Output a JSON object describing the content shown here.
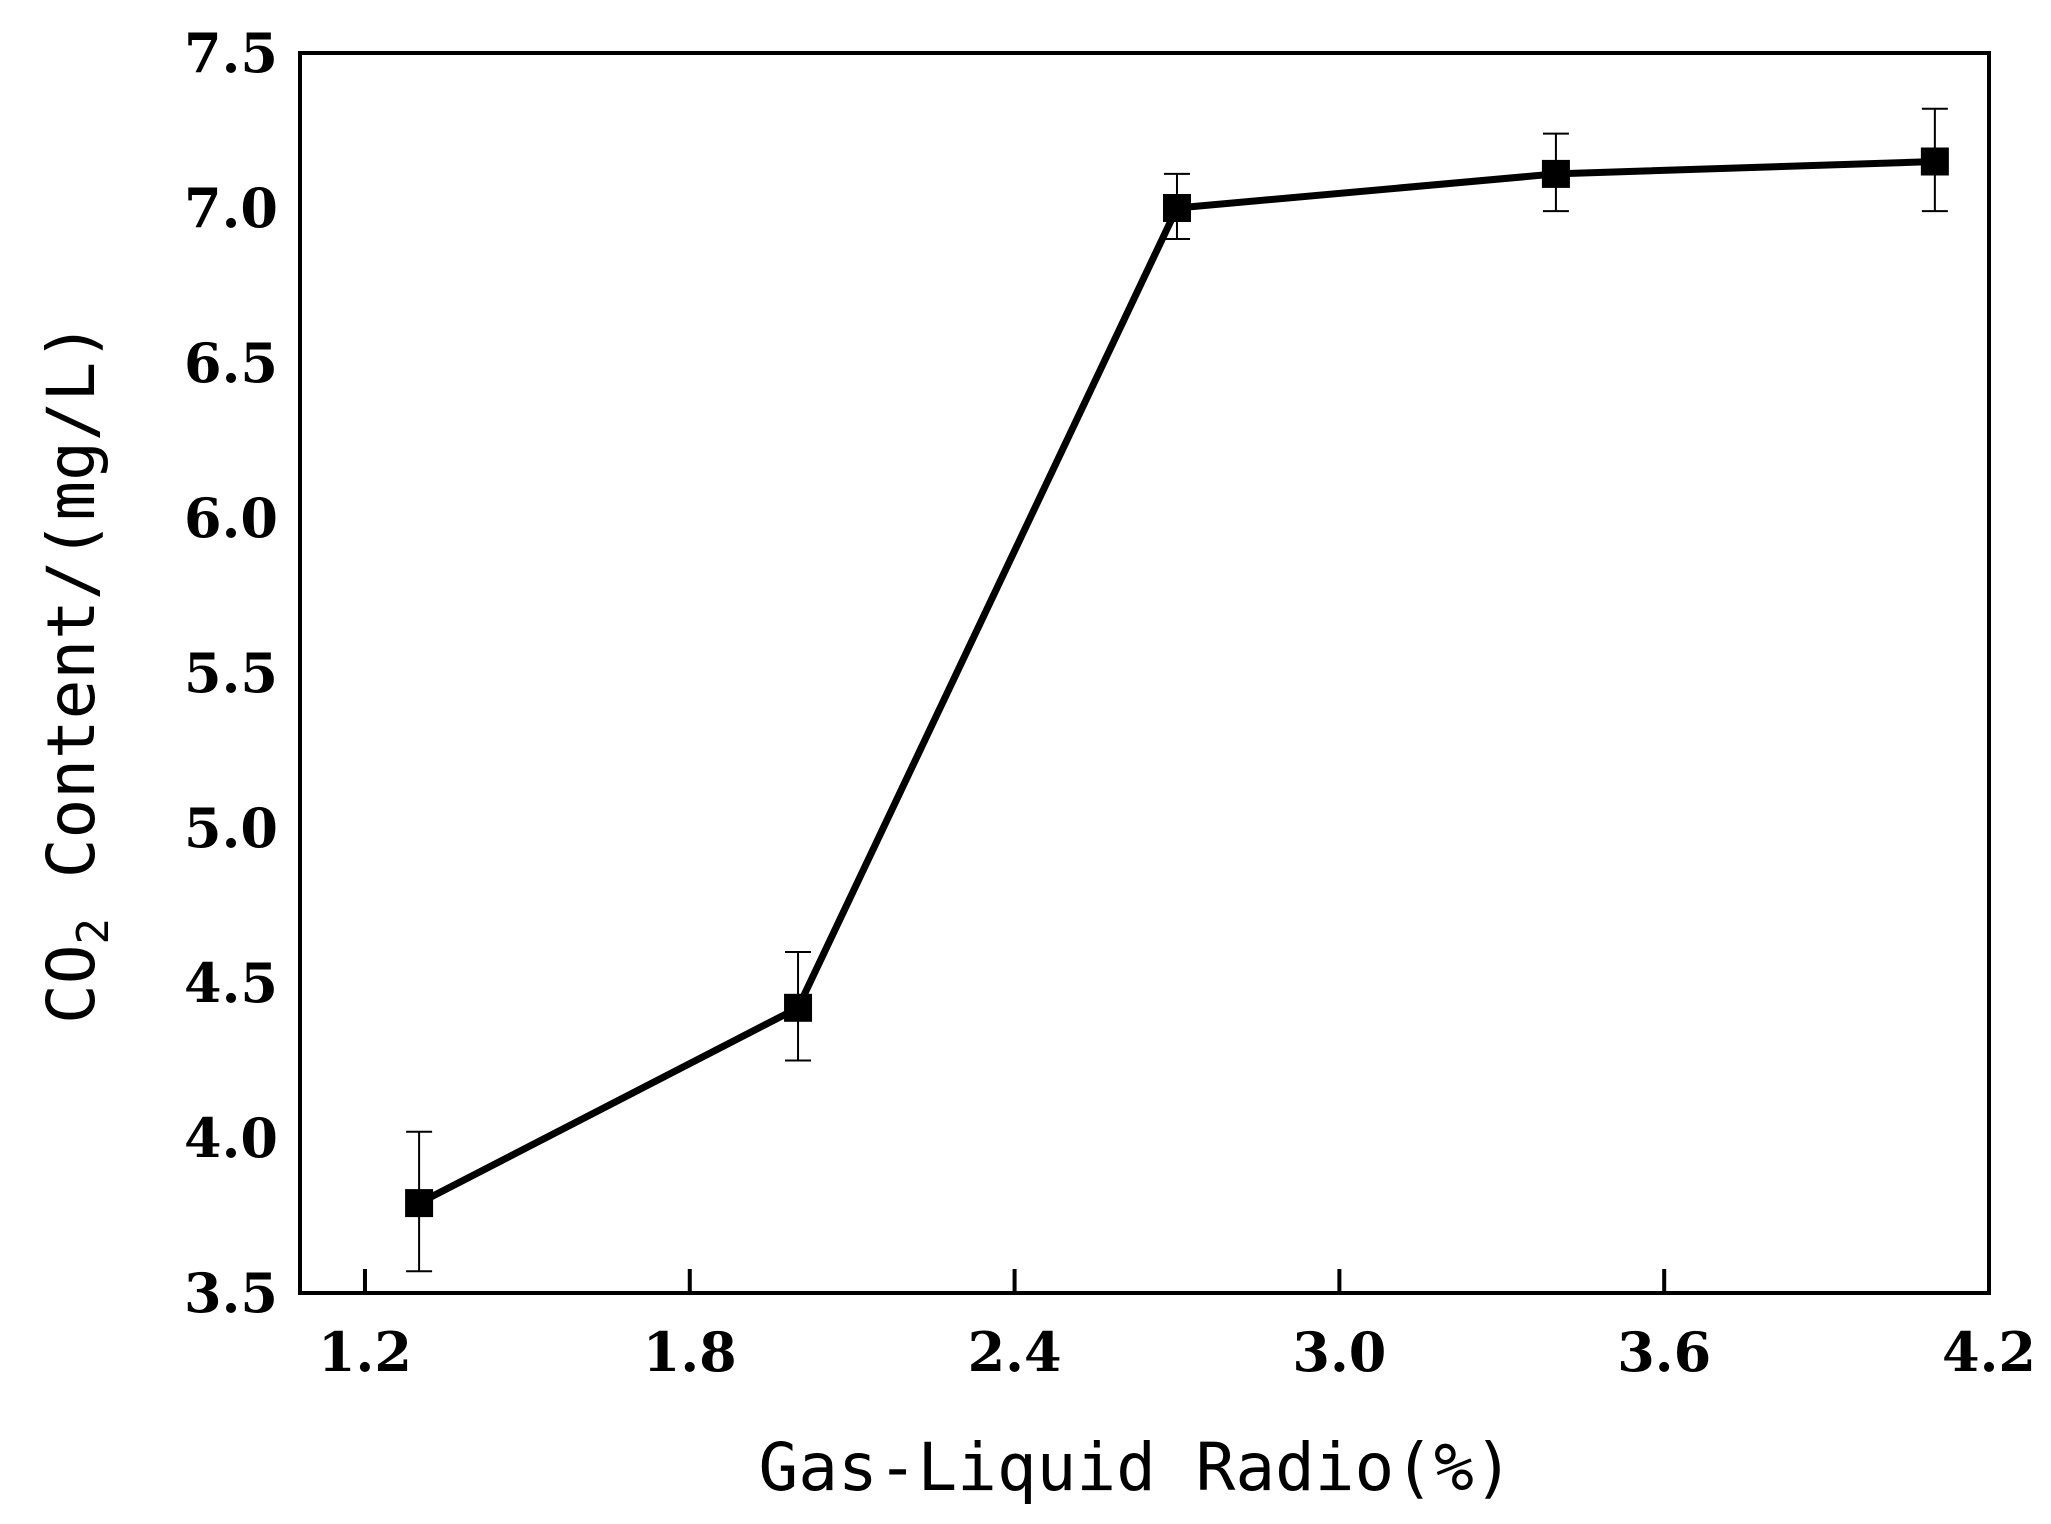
{
  "chart_data": {
    "type": "line",
    "title": "",
    "xlabel": "Gas-Liquid Radio(%)",
    "ylabel": "CO2 Content/(mg/L)",
    "ylabel_parts": {
      "pre": "CO",
      "sub": "2",
      "post": " Content/(mg/L)"
    },
    "xlim": [
      1.08,
      4.2
    ],
    "ylim": [
      3.5,
      7.5
    ],
    "xticks": [
      1.2,
      1.8,
      2.4,
      3.0,
      3.6,
      4.2
    ],
    "xtick_labels": [
      "1.2",
      "1.8",
      "2.4",
      "3.0",
      "3.6",
      "4.2"
    ],
    "yticks": [
      3.5,
      4.0,
      4.5,
      5.0,
      5.5,
      6.0,
      6.5,
      7.0,
      7.5
    ],
    "ytick_labels": [
      "3.5",
      "4.0",
      "4.5",
      "5.0",
      "5.5",
      "6.0",
      "6.5",
      "7.0",
      "7.5"
    ],
    "grid": false,
    "series": [
      {
        "x": [
          1.3,
          2.0,
          2.7,
          3.4,
          4.1
        ],
        "y": [
          3.79,
          4.42,
          7.0,
          7.11,
          7.15
        ],
        "err_upper": [
          4.02,
          4.6,
          7.11,
          7.24,
          7.32
        ],
        "err_lower": [
          3.57,
          4.25,
          6.9,
          6.99,
          6.99
        ],
        "marker": "square",
        "color": "#000000"
      }
    ]
  }
}
